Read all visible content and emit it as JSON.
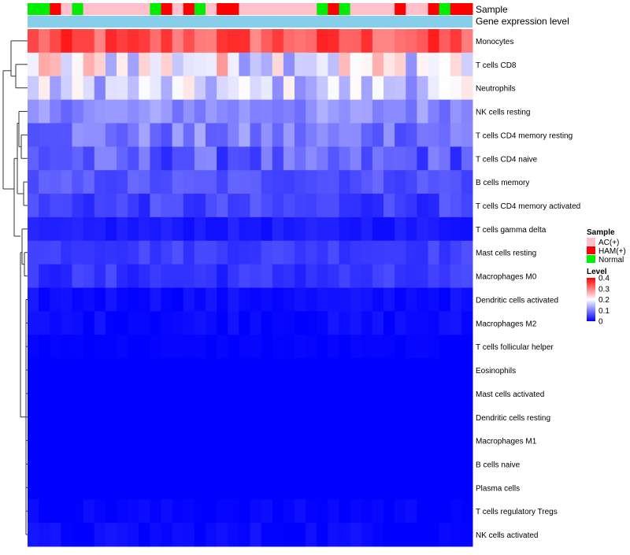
{
  "chart_data": {
    "type": "heatmap",
    "title": "",
    "annotation_tracks": [
      "Sample",
      "Gene expression level"
    ],
    "samples": [
      "Normal",
      "Normal",
      "HAM(+)",
      "AC(+)",
      "Normal",
      "AC(+)",
      "AC(+)",
      "AC(+)",
      "AC(+)",
      "AC(+)",
      "AC(+)",
      "Normal",
      "HAM(+)",
      "AC(+)",
      "HAM(+)",
      "Normal",
      "AC(+)",
      "HAM(+)",
      "HAM(+)",
      "AC(+)",
      "AC(+)",
      "AC(+)",
      "AC(+)",
      "AC(+)",
      "AC(+)",
      "AC(+)",
      "Normal",
      "HAM(+)",
      "Normal",
      "AC(+)",
      "AC(+)",
      "AC(+)",
      "AC(+)",
      "HAM(+)",
      "AC(+)",
      "AC(+)",
      "HAM(+)",
      "Normal",
      "HAM(+)",
      "HAM(+)"
    ],
    "gene_expression_level": "constant",
    "rows": [
      "Monocytes",
      "T cells CD8",
      "Neutrophils",
      "NK cells resting",
      "T cells CD4 memory resting",
      "T cells CD4 naive",
      "B cells memory",
      "T cells CD4 memory activated",
      "T cells gamma delta",
      "Mast cells resting",
      "Macrophages M0",
      "Dendritic cells activated",
      "Macrophages M2",
      "T cells follicular helper",
      "Eosinophils",
      "Mast cells activated",
      "Dendritic cells resting",
      "Macrophages M1",
      "B cells naive",
      "Plasma cells",
      "T cells regulatory  Tregs",
      "NK cells activated"
    ],
    "row_means": [
      0.33,
      0.2,
      0.16,
      0.11,
      0.095,
      0.07,
      0.065,
      0.05,
      0.02,
      0.05,
      0.04,
      0.01,
      0.008,
      0.002,
      0.0,
      0.0,
      0.0,
      0.0,
      0.0,
      0.0,
      0.004,
      0.006
    ],
    "row_spread": [
      0.05,
      0.09,
      0.06,
      0.03,
      0.04,
      0.04,
      0.02,
      0.025,
      0.01,
      0.015,
      0.02,
      0.01,
      0.01,
      0.004,
      0.0,
      0.0,
      0.0,
      0.0,
      0.0,
      0.0,
      0.008,
      0.012
    ],
    "color_scale": {
      "min": 0,
      "max": 0.4,
      "stops": [
        "#0000ff",
        "#ffffff",
        "#ff0000"
      ]
    },
    "legend": {
      "sample_title": "Sample",
      "sample_entries": [
        {
          "label": "AC(+)",
          "color": "#ffc0cb"
        },
        {
          "label": "HAM(+)",
          "color": "#ff0000"
        },
        {
          "label": "Normal",
          "color": "#00ee00"
        }
      ],
      "level_title": "Level",
      "level_ticks": [
        "0.4",
        "0.3",
        "0.2",
        "0.1",
        "0"
      ],
      "level_tick_values": [
        0.4,
        0.3,
        0.2,
        0.1,
        0
      ],
      "position": "right"
    },
    "gene_level_color": "#87ceeb"
  }
}
